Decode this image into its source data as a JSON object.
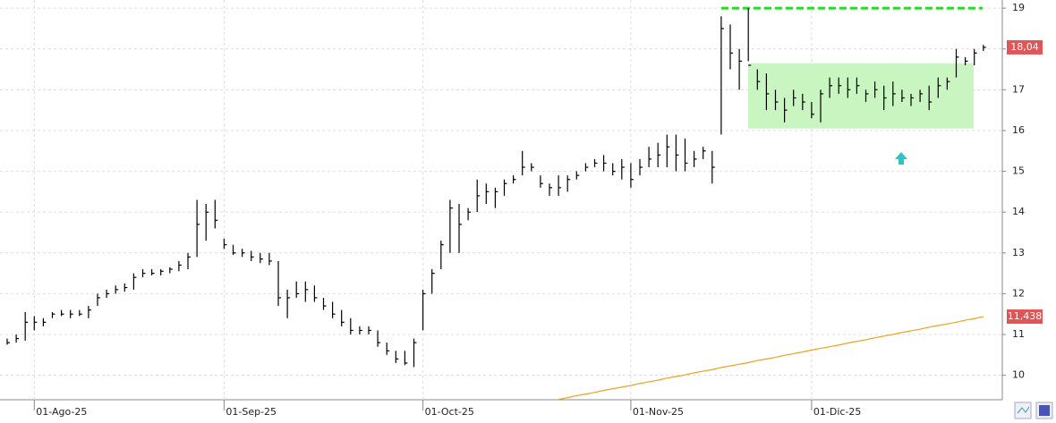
{
  "chart_data": {
    "type": "hlc",
    "categories": [
      null,
      null,
      null,
      "01-Ago-25",
      null,
      null,
      null,
      null,
      null,
      null,
      null,
      null,
      null,
      null,
      null,
      null,
      null,
      null,
      null,
      null,
      null,
      null,
      null,
      null,
      "01-Sep-25",
      null,
      null,
      null,
      null,
      null,
      null,
      null,
      null,
      null,
      null,
      null,
      null,
      null,
      null,
      null,
      null,
      null,
      null,
      null,
      null,
      null,
      "01-Oct-25",
      null,
      null,
      null,
      null,
      null,
      null,
      null,
      null,
      null,
      null,
      null,
      null,
      null,
      null,
      null,
      null,
      null,
      null,
      null,
      null,
      null,
      null,
      "01-Nov-25",
      null,
      null,
      null,
      null,
      null,
      null,
      null,
      null,
      null,
      null,
      null,
      null,
      null,
      null,
      null,
      null,
      null,
      null,
      null,
      "01-Dic-25",
      null,
      null,
      null,
      null,
      null,
      null,
      null,
      null,
      null,
      null,
      null,
      null,
      null,
      null,
      null,
      null,
      null,
      null,
      null
    ],
    "high": [
      10.9,
      11.0,
      11.55,
      11.45,
      11.4,
      11.55,
      11.6,
      11.6,
      11.6,
      11.7,
      12.0,
      12.1,
      12.2,
      12.25,
      12.5,
      12.6,
      12.6,
      12.6,
      12.65,
      12.8,
      13.0,
      14.3,
      14.2,
      14.3,
      13.35,
      13.2,
      13.1,
      13.05,
      13.0,
      13.0,
      12.8,
      12.1,
      12.3,
      12.3,
      12.2,
      11.9,
      11.8,
      11.6,
      11.4,
      11.2,
      11.2,
      11.1,
      10.8,
      10.6,
      10.6,
      10.9,
      12.1,
      12.6,
      13.3,
      14.3,
      14.2,
      14.1,
      14.8,
      14.7,
      14.6,
      14.8,
      14.9,
      15.5,
      15.2,
      14.9,
      14.7,
      14.9,
      14.9,
      15.0,
      15.2,
      15.3,
      15.4,
      15.2,
      15.3,
      15.2,
      15.3,
      15.6,
      15.7,
      15.9,
      15.9,
      15.8,
      15.5,
      15.6,
      15.5,
      18.8,
      18.6,
      18.0,
      19.0,
      17.5,
      17.4,
      17.0,
      16.8,
      17.0,
      16.9,
      16.7,
      17.0,
      17.3,
      17.3,
      17.3,
      17.3,
      17.0,
      17.2,
      17.1,
      17.2,
      17.0,
      16.9,
      17.0,
      17.1,
      17.3,
      17.3,
      18.0,
      17.8,
      18.0,
      18.1
    ],
    "low": [
      10.75,
      10.8,
      10.85,
      11.1,
      11.2,
      11.4,
      11.45,
      11.4,
      11.45,
      11.4,
      11.7,
      11.9,
      12.0,
      12.05,
      12.1,
      12.4,
      12.45,
      12.45,
      12.5,
      12.55,
      12.6,
      12.9,
      13.3,
      13.6,
      13.1,
      12.95,
      12.9,
      12.8,
      12.75,
      12.7,
      11.7,
      11.4,
      11.9,
      11.8,
      11.8,
      11.6,
      11.4,
      11.2,
      11.0,
      11.0,
      11.0,
      10.7,
      10.5,
      10.3,
      10.25,
      10.2,
      11.1,
      12.0,
      12.6,
      13.0,
      13.0,
      13.8,
      14.0,
      14.2,
      14.1,
      14.4,
      14.7,
      14.9,
      15.0,
      14.6,
      14.4,
      14.4,
      14.5,
      14.8,
      15.0,
      15.1,
      15.0,
      14.9,
      14.8,
      14.6,
      14.9,
      15.1,
      15.1,
      15.1,
      15.0,
      15.0,
      15.1,
      15.3,
      14.7,
      15.9,
      17.5,
      17.0,
      17.7,
      17.0,
      16.5,
      16.5,
      16.2,
      16.6,
      16.5,
      16.3,
      16.2,
      16.8,
      16.9,
      16.8,
      16.9,
      16.7,
      16.8,
      16.5,
      16.6,
      16.7,
      16.6,
      16.7,
      16.5,
      16.8,
      17.0,
      17.3,
      17.6,
      17.6,
      17.95
    ],
    "close": [
      10.8,
      10.9,
      11.3,
      11.3,
      11.3,
      11.5,
      11.5,
      11.5,
      11.5,
      11.6,
      11.9,
      12.0,
      12.1,
      12.15,
      12.4,
      12.5,
      12.5,
      12.55,
      12.6,
      12.7,
      12.9,
      13.7,
      14.0,
      13.8,
      13.2,
      13.0,
      13.0,
      12.9,
      12.85,
      12.8,
      11.9,
      11.9,
      12.0,
      12.1,
      11.9,
      11.7,
      11.5,
      11.3,
      11.1,
      11.1,
      11.1,
      10.8,
      10.6,
      10.4,
      10.3,
      10.8,
      12.0,
      12.5,
      13.2,
      14.1,
      13.7,
      14.0,
      14.4,
      14.5,
      14.5,
      14.7,
      14.8,
      15.1,
      15.1,
      14.7,
      14.6,
      14.6,
      14.8,
      14.9,
      15.1,
      15.2,
      15.2,
      15.0,
      15.1,
      14.8,
      15.1,
      15.3,
      15.4,
      15.6,
      15.4,
      15.2,
      15.3,
      15.5,
      15.1,
      18.5,
      17.9,
      17.7,
      17.6,
      17.2,
      16.9,
      16.7,
      16.5,
      16.8,
      16.7,
      16.4,
      16.9,
      17.1,
      17.1,
      17.0,
      17.1,
      16.9,
      17.0,
      16.8,
      16.9,
      16.8,
      16.8,
      16.9,
      16.7,
      17.1,
      17.2,
      17.8,
      17.7,
      17.9,
      18.04
    ],
    "color": "#000000",
    "ma": {
      "color": "#f0a020",
      "values": [
        null,
        null,
        null,
        null,
        null,
        null,
        null,
        null,
        null,
        null,
        null,
        null,
        null,
        null,
        null,
        null,
        null,
        null,
        null,
        null,
        null,
        null,
        null,
        null,
        null,
        null,
        null,
        null,
        null,
        null,
        null,
        null,
        null,
        null,
        null,
        null,
        null,
        null,
        null,
        null,
        null,
        null,
        null,
        null,
        null,
        null,
        null,
        null,
        null,
        null,
        null,
        null,
        null,
        null,
        null,
        null,
        null,
        null,
        null,
        null,
        null,
        9.41,
        9.45,
        9.5,
        9.54,
        9.58,
        9.63,
        9.67,
        9.71,
        9.75,
        9.8,
        9.84,
        9.88,
        9.93,
        9.97,
        10.01,
        10.06,
        10.1,
        10.14,
        10.19,
        10.23,
        10.27,
        10.31,
        10.36,
        10.4,
        10.44,
        10.49,
        10.53,
        10.57,
        10.62,
        10.66,
        10.7,
        10.74,
        10.79,
        10.83,
        10.87,
        10.92,
        10.96,
        11.0,
        11.05,
        11.09,
        11.13,
        11.18,
        11.22,
        11.26,
        11.3,
        11.35,
        11.39,
        11.438
      ]
    },
    "resistance": {
      "value": 19,
      "color": "#22dd22"
    },
    "zone": {
      "low": 16.05,
      "high": 17.65,
      "color": "#c8f5c0"
    },
    "price_labels": [
      {
        "value": 18.04,
        "label": "18,04"
      },
      {
        "value": 11.438,
        "label": "11,438"
      }
    ],
    "ylim": [
      9.4,
      19.2
    ],
    "yticks": [
      10,
      11,
      12,
      13,
      14,
      15,
      16,
      17,
      18,
      19
    ],
    "grid": true
  }
}
